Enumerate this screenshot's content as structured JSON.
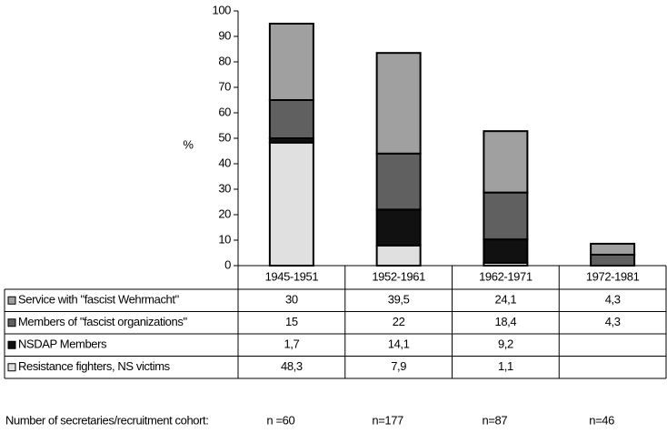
{
  "chart_data": {
    "type": "stacked_bar",
    "y_label": "%",
    "categories": [
      "1945-1951",
      "1952-1961",
      "1962-1971",
      "1972-1981"
    ],
    "series": [
      {
        "name": "Service with \"fascist Wehrmacht\"",
        "color": "#a0a0a0",
        "values": [
          30,
          39.5,
          24.1,
          4.3
        ],
        "value_labels": [
          "30",
          "39,5",
          "24,1",
          "4,3"
        ]
      },
      {
        "name": "Members of \"fascist organizations\"",
        "color": "#606060",
        "values": [
          15,
          22,
          18.4,
          4.3
        ],
        "value_labels": [
          "15",
          "22",
          "18,4",
          "4,3"
        ]
      },
      {
        "name": "NSDAP Members",
        "color": "#111111",
        "values": [
          1.7,
          14.1,
          9.2,
          null
        ],
        "value_labels": [
          "1,7",
          "14,1",
          "9,2",
          null
        ]
      },
      {
        "name": "Resistance fighters, NS victims",
        "color": "#e0e0e0",
        "values": [
          48.3,
          7.9,
          1.1,
          null
        ],
        "value_labels": [
          "48,3",
          "7,9",
          "1,1",
          null
        ]
      }
    ],
    "ylim": [
      0,
      100
    ],
    "yticks": [
      0,
      10,
      20,
      30,
      40,
      50,
      60,
      70,
      80,
      90,
      100
    ],
    "footer": {
      "label": "Number of secretaries/recruitment cohort:",
      "counts": [
        "n =60",
        "n=177",
        "n=87",
        "n=46"
      ]
    }
  }
}
